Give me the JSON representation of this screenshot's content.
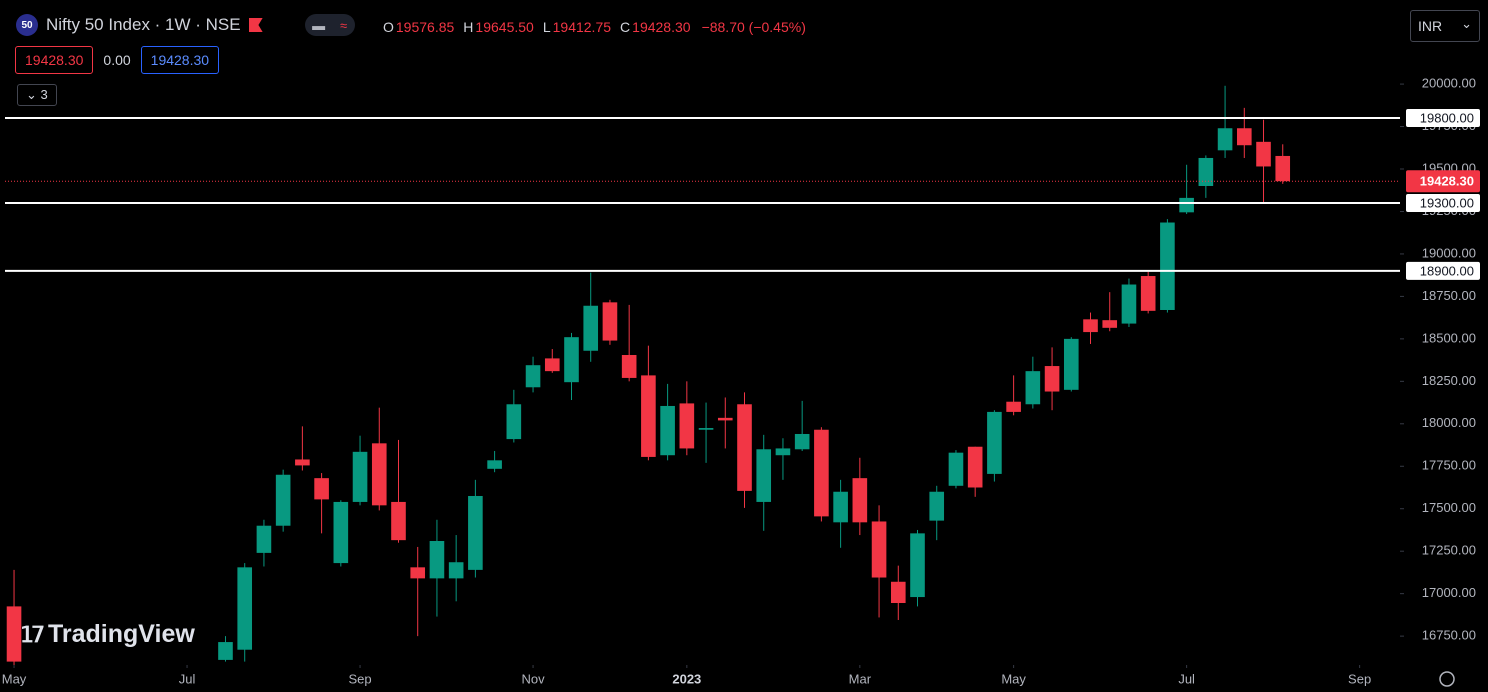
{
  "header": {
    "badge": "50",
    "symbol": "Nifty 50 Index · 1W · NSE",
    "ohlc": [
      {
        "key": "O",
        "text": "19576.85"
      },
      {
        "key": "H",
        "text": "19645.50"
      },
      {
        "key": "L",
        "text": "19412.75"
      },
      {
        "key": "C",
        "text": "19428.30"
      },
      {
        "key": "",
        "text": "−88.70 (−0.45%)"
      }
    ],
    "sell": "19428.30",
    "spread": "0.00",
    "buy": "19428.30",
    "indicators": "3",
    "currency": "INR",
    "watermark": "TradingView"
  },
  "chart_data": {
    "type": "candlestick",
    "categories": [
      null,
      null,
      null,
      null,
      null,
      null,
      null,
      null,
      null,
      null,
      null,
      null,
      null,
      null,
      null,
      null,
      null,
      null,
      null,
      null,
      null,
      null,
      null,
      null,
      null,
      null,
      null,
      null,
      null,
      null,
      null,
      null,
      null,
      null,
      null,
      null,
      null,
      null,
      null,
      null,
      null,
      null,
      null,
      null,
      null,
      null,
      null,
      null,
      null,
      null,
      null,
      null,
      null,
      null,
      null,
      null,
      null,
      null,
      null,
      null,
      null,
      null,
      null,
      null,
      null,
      null,
      null
    ],
    "open": [
      16925,
      null,
      null,
      null,
      null,
      null,
      null,
      null,
      null,
      null,
      null,
      16610,
      16670,
      17240,
      17400,
      17790,
      17680,
      17180,
      17540,
      17885,
      17540,
      17155,
      17090,
      17090,
      17140,
      17735,
      17910,
      18215,
      18385,
      18245,
      18430,
      18715,
      18405,
      18285,
      17815,
      18120,
      17965,
      18035,
      18115,
      17540,
      17815,
      17850,
      17965,
      17420,
      17680,
      17425,
      17070,
      16980,
      17430,
      17635,
      17865,
      17705,
      18130,
      18115,
      18340,
      18200,
      18615,
      18610,
      18590,
      18870,
      18670,
      19245,
      19400,
      19610,
      19740,
      19660,
      19576.85
    ],
    "high": [
      17140,
      null,
      null,
      null,
      null,
      null,
      null,
      null,
      null,
      null,
      null,
      16750,
      17180,
      17435,
      17730,
      17985,
      17710,
      17550,
      17930,
      18095,
      17905,
      17275,
      17435,
      17345,
      17670,
      17840,
      18200,
      18395,
      18440,
      18535,
      18890,
      18730,
      18700,
      18460,
      18235,
      18250,
      18125,
      18155,
      18185,
      17935,
      17915,
      18135,
      17980,
      17670,
      17800,
      17520,
      17165,
      17375,
      17635,
      17845,
      17865,
      18080,
      18285,
      18395,
      18450,
      18510,
      18655,
      18775,
      18855,
      18895,
      19205,
      19525,
      19580,
      19990,
      19860,
      19790,
      19645.5
    ],
    "low": [
      16550,
      null,
      null,
      null,
      null,
      null,
      null,
      null,
      null,
      null,
      null,
      16600,
      16600,
      17160,
      17365,
      17725,
      17355,
      17160,
      17520,
      17490,
      17300,
      16750,
      16865,
      16955,
      17095,
      17715,
      17890,
      18185,
      18300,
      18140,
      18365,
      18465,
      18250,
      17785,
      17785,
      17815,
      17770,
      17855,
      17505,
      17370,
      17670,
      17840,
      17425,
      17270,
      17345,
      16860,
      16845,
      16925,
      17315,
      17620,
      17570,
      17660,
      18050,
      18090,
      18080,
      18190,
      18470,
      18545,
      18570,
      18650,
      18655,
      19235,
      19330,
      19565,
      19565,
      19300,
      19412.75
    ],
    "close": [
      16600,
      null,
      null,
      null,
      null,
      null,
      null,
      null,
      null,
      null,
      null,
      16715,
      17155,
      17400,
      17700,
      17755,
      17555,
      17540,
      17835,
      17520,
      17315,
      17090,
      17310,
      17185,
      17575,
      17785,
      18115,
      18345,
      18310,
      18510,
      18695,
      18490,
      18270,
      17805,
      18105,
      17855,
      17975,
      18020,
      17605,
      17850,
      17855,
      17940,
      17455,
      17600,
      17420,
      17095,
      16945,
      17355,
      17600,
      17830,
      17625,
      18070,
      18070,
      18310,
      18190,
      18500,
      18540,
      18565,
      18820,
      18665,
      19185,
      19330,
      19565,
      19740,
      19640,
      19515,
      19428.3
    ],
    "up_color": "#089981",
    "down_color": "#f23645",
    "xlim": [
      -0.47,
      72.1
    ],
    "ylim": [
      16580,
      20495
    ],
    "xticks": [
      {
        "value": 0,
        "label": "May"
      },
      {
        "value": 9,
        "label": "Jul"
      },
      {
        "value": 18,
        "label": "Sep"
      },
      {
        "value": 27,
        "label": "Nov"
      },
      {
        "value": 35,
        "label": "2023"
      },
      {
        "value": 44,
        "label": "Mar"
      },
      {
        "value": 52,
        "label": "May"
      },
      {
        "value": 61,
        "label": "Jul"
      },
      {
        "value": 70,
        "label": "Sep"
      }
    ],
    "yticks": [
      {
        "value": 16750,
        "label": "16750.00"
      },
      {
        "value": 17000,
        "label": "17000.00"
      },
      {
        "value": 17250,
        "label": "17250.00"
      },
      {
        "value": 17500,
        "label": "17500.00"
      },
      {
        "value": 17750,
        "label": "17750.00"
      },
      {
        "value": 18000,
        "label": "18000.00"
      },
      {
        "value": 18250,
        "label": "18250.00"
      },
      {
        "value": 18500,
        "label": "18500.00"
      },
      {
        "value": 18750,
        "label": "18750.00"
      },
      {
        "value": 19000,
        "label": "19000.00"
      },
      {
        "value": 19250,
        "label": "19250.00"
      },
      {
        "value": 19500,
        "label": "19500.00"
      },
      {
        "value": 19750,
        "label": "19750.00"
      },
      {
        "value": 20000,
        "label": "20000.00"
      }
    ],
    "hlines": [
      {
        "value": 19800,
        "label": "19800.00"
      },
      {
        "value": 19300,
        "label": "19300.00"
      },
      {
        "value": 18900,
        "label": "18900.00"
      }
    ],
    "last_price": {
      "value": 19428.3,
      "label": "19428.30"
    }
  }
}
